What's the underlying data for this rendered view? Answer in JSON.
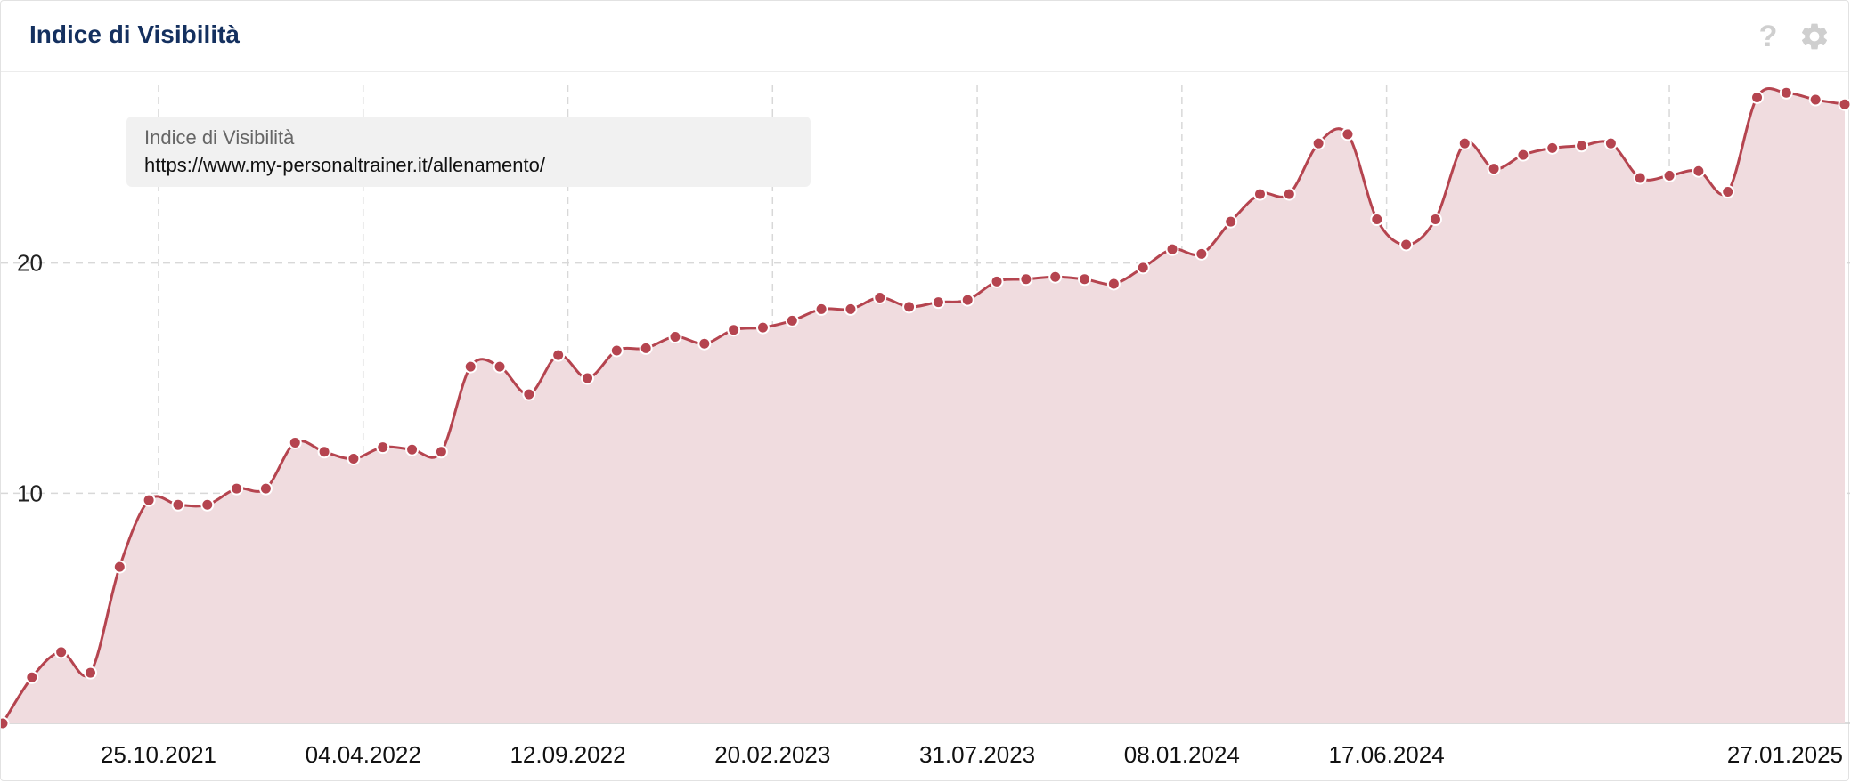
{
  "header": {
    "title": "Indice di Visibilità",
    "help_icon": "question-icon",
    "settings_icon": "gear-icon"
  },
  "legend": {
    "series_name": "Indice di Visibilità",
    "url": "https://www.my-personaltrainer.it/allenamento/"
  },
  "colors": {
    "line": "#b5444f",
    "fill": "#f0dcdf",
    "title": "#14305f",
    "grid": "#d8d8d8"
  },
  "chart_data": {
    "type": "area",
    "grid": true,
    "legend_placement": "top-left",
    "ylim": [
      0,
      28.3
    ],
    "yticks": [
      10,
      20
    ],
    "x_tick_labels": [
      "25.10.2021",
      "04.04.2022",
      "12.09.2022",
      "20.02.2023",
      "31.07.2023",
      "08.01.2024",
      "17.06.2024",
      "27.01.2025"
    ],
    "x_tick_index": [
      5.33,
      12.33,
      19.33,
      26.33,
      33.33,
      40.33,
      47.33,
      57.0
    ],
    "series": [
      {
        "name": "Indice di Visibilità",
        "values": [
          0.0,
          2.0,
          3.1,
          2.2,
          6.8,
          9.7,
          9.5,
          9.5,
          10.2,
          10.2,
          12.2,
          11.8,
          11.5,
          12.0,
          11.9,
          11.8,
          15.5,
          15.5,
          14.3,
          16.0,
          15.0,
          16.2,
          16.3,
          16.8,
          16.5,
          17.1,
          17.2,
          17.5,
          18.0,
          18.0,
          18.5,
          18.1,
          18.3,
          18.4,
          19.2,
          19.3,
          19.4,
          19.3,
          19.1,
          19.8,
          20.6,
          20.4,
          21.8,
          23.0,
          23.0,
          25.2,
          25.6,
          21.9,
          20.8,
          21.9,
          25.2,
          24.1,
          24.7,
          25.0,
          25.1,
          25.2,
          23.7,
          23.8,
          24.0,
          23.1,
          27.2,
          27.4,
          27.1,
          26.9
        ]
      }
    ]
  }
}
